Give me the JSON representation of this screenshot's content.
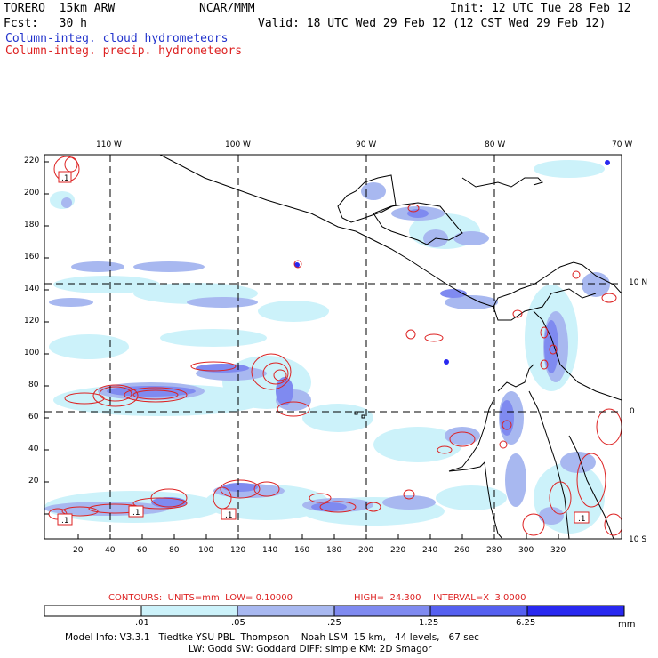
{
  "header": {
    "model": "TORERO  15km ARW",
    "org": "NCAR/MMM",
    "init": "Init: 12 UTC Tue 28 Feb 12",
    "fcst": "Fcst:   30 h",
    "valid": "Valid: 18 UTC Wed 29 Feb 12 (12 CST Wed 29 Feb 12)",
    "field1": "Column-integ. cloud hydrometeors",
    "field2": "Column-integ. precip. hydrometeors"
  },
  "map": {
    "top_lon_labels": [
      "110 W",
      "100 W",
      "90 W",
      "80 W",
      "70 W"
    ],
    "right_lat_labels": [
      "10 N",
      "0",
      "10 S"
    ],
    "y_ticks": [
      "220",
      "200",
      "180",
      "160",
      "140",
      "120",
      "100",
      "80",
      "60",
      "40",
      "20"
    ],
    "x_ticks": [
      "20",
      "40",
      "60",
      "80",
      "100",
      "120",
      "140",
      "160",
      "180",
      "200",
      "220",
      "240",
      "260",
      "280",
      "300",
      "320"
    ],
    "contour_labels": [
      ".1",
      ".1",
      ".1",
      ".1",
      ".1"
    ]
  },
  "contour_info": {
    "contours": "CONTOURS:  UNITS=mm  LOW= 0.10000",
    "high": "HIGH=  24.300",
    "interval": "INTERVAL=X  3.0000"
  },
  "colorbar": {
    "ticks": [
      ".01",
      ".05",
      ".25",
      "1.25",
      "6.25"
    ],
    "unit": "mm",
    "colors": [
      "#ffffff",
      "#ccf2fa",
      "#a8b8f0",
      "#7f8af0",
      "#5560f0",
      "#2828f0"
    ]
  },
  "footer": {
    "line1": "Model Info: V3.3.1   Tiedtke YSU PBL  Thompson    Noah LSM  15 km,   44 levels,   67 sec",
    "line2": "LW: Godd SW: Goddard DIFF: simple KM: 2D Smagor"
  }
}
